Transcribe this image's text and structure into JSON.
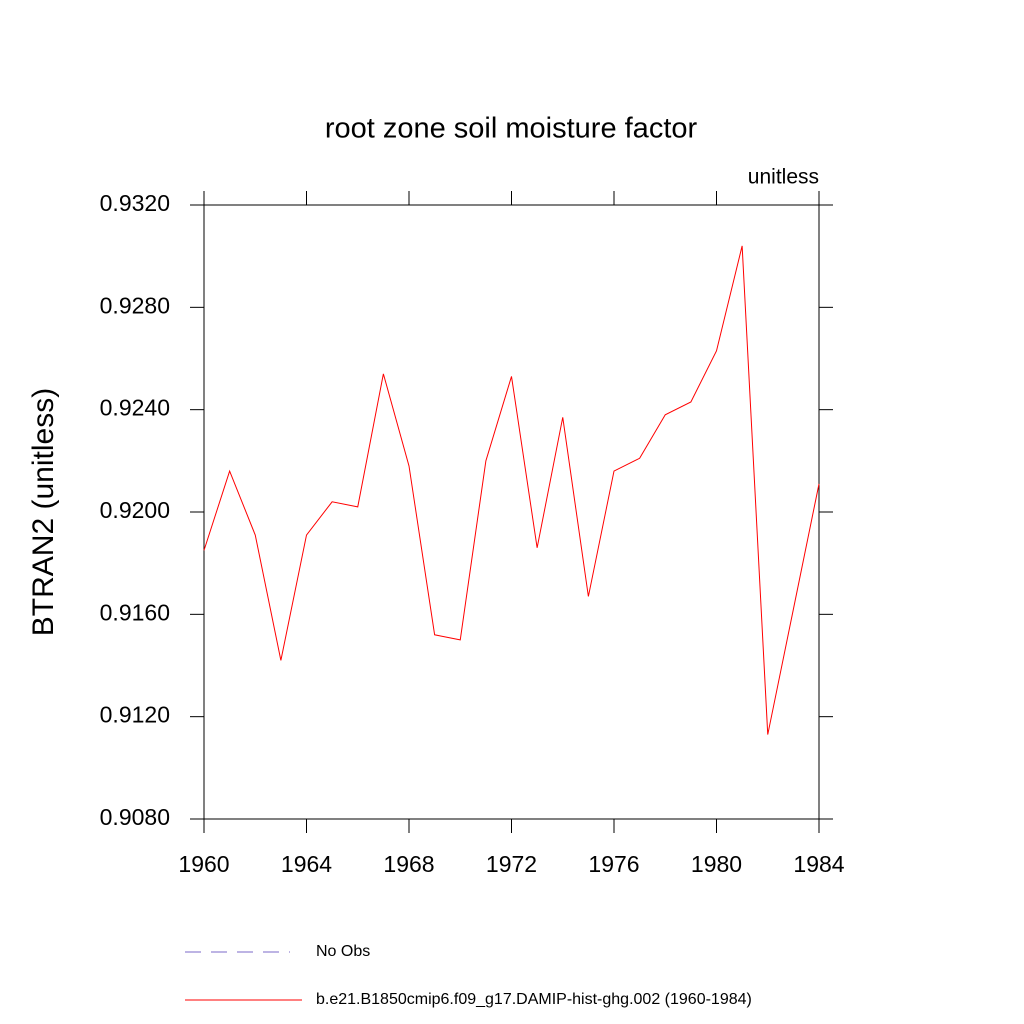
{
  "chart_data": {
    "type": "line",
    "title": "root zone soil moisture factor",
    "subtitle": "unitless",
    "y_label": "BTRAN2  (unitless)",
    "x": [
      1960,
      1961,
      1962,
      1963,
      1964,
      1965,
      1966,
      1967,
      1968,
      1969,
      1970,
      1971,
      1972,
      1973,
      1974,
      1975,
      1976,
      1977,
      1978,
      1979,
      1980,
      1981,
      1982,
      1983,
      1984
    ],
    "series": [
      {
        "name": "No Obs",
        "color": "#7b68c8",
        "dashed": true,
        "values": [
          null,
          null,
          null,
          null,
          null,
          null,
          null,
          null,
          null,
          null,
          null,
          null,
          null,
          null,
          null,
          null,
          null,
          null,
          null,
          null,
          null,
          null,
          null,
          null,
          null
        ]
      },
      {
        "name": "b.e21.B1850cmip6.f09_g17.DAMIP-hist-ghg.002 (1960-1984)",
        "color": "#ff0000",
        "dashed": false,
        "values": [
          0.9185,
          0.9216,
          0.9191,
          0.9142,
          0.9191,
          0.9204,
          0.9202,
          0.9254,
          0.9218,
          0.9152,
          0.915,
          0.922,
          0.9253,
          0.9186,
          0.9237,
          0.9167,
          0.9216,
          0.9221,
          0.9238,
          0.9243,
          0.9263,
          0.9304,
          0.9113,
          0.9162,
          0.9211
        ]
      }
    ],
    "xlim": [
      1960,
      1984
    ],
    "xticks": [
      1960,
      1964,
      1968,
      1972,
      1976,
      1980,
      1984
    ],
    "ylim": [
      0.908,
      0.932
    ],
    "yticks": [
      {
        "value": 0.908,
        "label": "0.9080"
      },
      {
        "value": 0.912,
        "label": "0.9120"
      },
      {
        "value": 0.916,
        "label": "0.9160"
      },
      {
        "value": 0.92,
        "label": "0.9200"
      },
      {
        "value": 0.924,
        "label": "0.9240"
      },
      {
        "value": 0.928,
        "label": "0.9280"
      },
      {
        "value": 0.932,
        "label": "0.9320"
      }
    ],
    "grid": false
  }
}
